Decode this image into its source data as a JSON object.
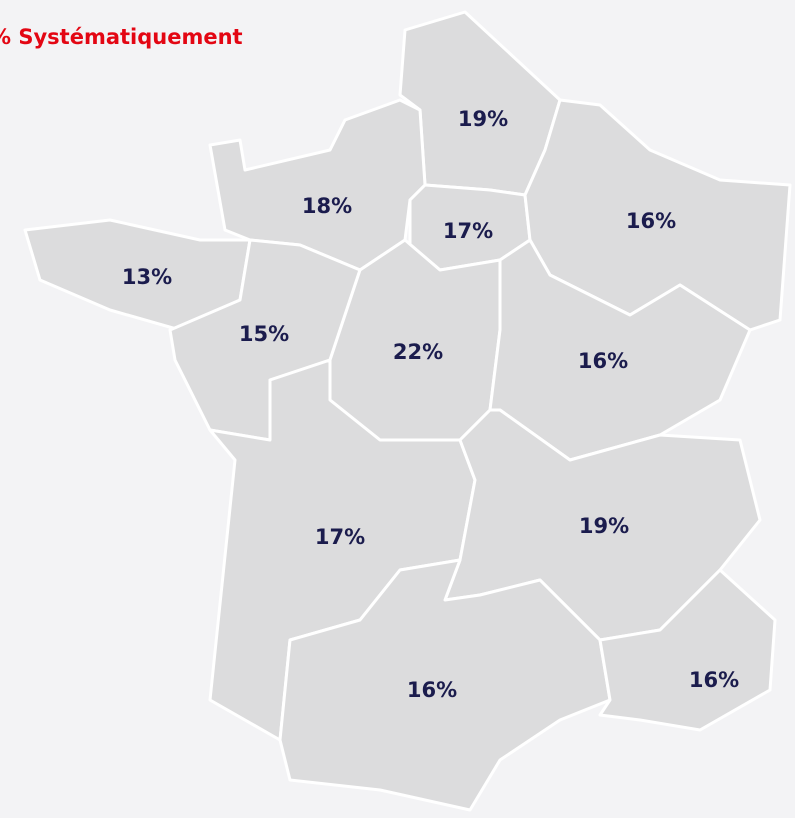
{
  "title": "% Systématiquement",
  "map": {
    "type": "choropleth",
    "color": "#dcdcdd",
    "border_color": "#ffffff",
    "values": [
      19,
      18,
      17,
      16,
      13,
      15,
      22,
      16,
      17,
      19,
      16,
      16
    ],
    "value_labels": [
      "19%",
      "18%",
      "17%",
      "16%",
      "13%",
      "15%",
      "22%",
      "16%",
      "17%",
      "19%",
      "16%",
      "16%"
    ]
  }
}
